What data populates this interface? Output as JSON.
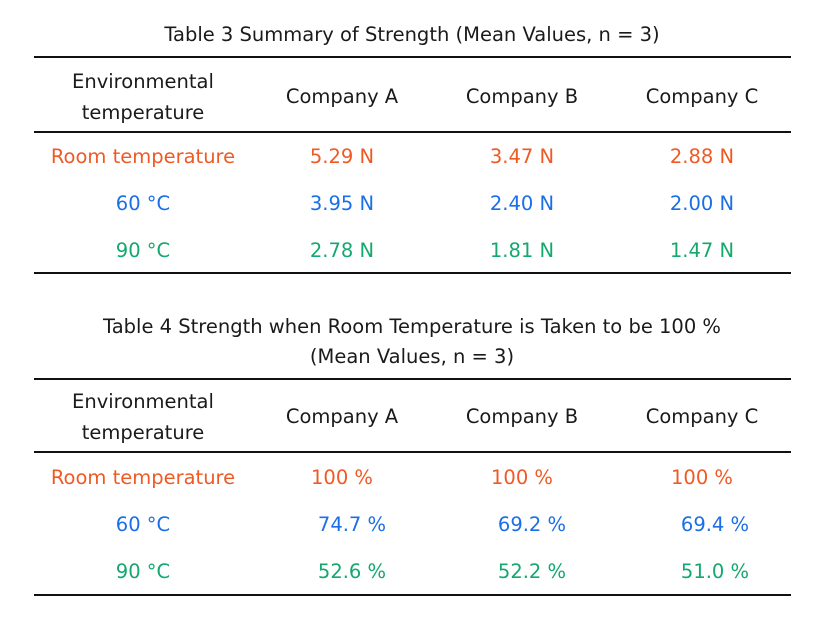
{
  "table3": {
    "caption": "Table 3 Summary of Strength (Mean Values, n = 3)",
    "columns": [
      "Environmental temperature",
      "Company A",
      "Company B",
      "Company C"
    ],
    "header_line1": "Environmental",
    "header_line2": "temperature",
    "rows": [
      {
        "label": "Room temperature",
        "values": [
          "5.29 N",
          "3.47 N",
          "2.88 N"
        ],
        "color": "#ef5a24"
      },
      {
        "label": "60 °C",
        "values": [
          "3.95 N",
          "2.40 N",
          "2.00 N"
        ],
        "color": "#1a6fe8"
      },
      {
        "label": "90 °C",
        "values": [
          "2.78 N",
          "1.81 N",
          "1.47 N"
        ],
        "color": "#14a86e"
      }
    ]
  },
  "table4": {
    "caption_line1": "Table 4 Strength when Room Temperature is Taken to be 100 %",
    "caption_line2": "(Mean Values, n = 3)",
    "columns": [
      "Environmental temperature",
      "Company A",
      "Company B",
      "Company C"
    ],
    "header_line1": "Environmental",
    "header_line2": "temperature",
    "rows": [
      {
        "label": "Room temperature",
        "values": [
          "100 %",
          "100 %",
          "100 %"
        ],
        "color": "#ef5a24"
      },
      {
        "label": "60 °C",
        "values": [
          "74.7 %",
          "69.2 %",
          "69.4 %"
        ],
        "color": "#1a6fe8"
      },
      {
        "label": "90 °C",
        "values": [
          "52.6 %",
          "52.2 %",
          "51.0 %"
        ],
        "color": "#14a86e"
      }
    ]
  }
}
